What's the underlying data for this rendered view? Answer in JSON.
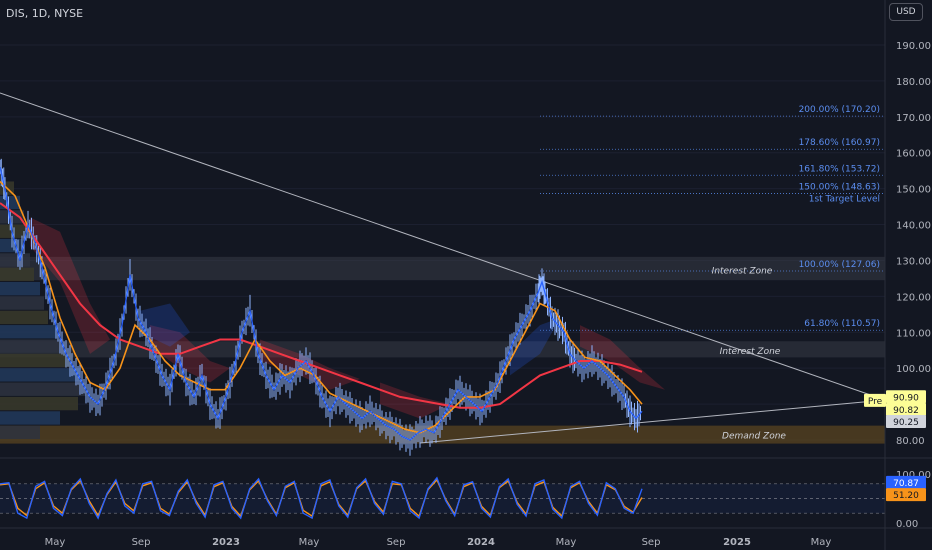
{
  "header": {
    "title": "DIS, 1D, NYSE",
    "currency": "USD"
  },
  "colors": {
    "background": "#131722",
    "price_line": "#2962ff",
    "candle": "#8fb4ff",
    "ema_fast": "#f7931a",
    "sma_slow": "#f23645",
    "fib_text": "#5b8def",
    "zone_gray": "#363a45",
    "demand_zone": "#5a4420",
    "stoch_k": "#2962ff",
    "stoch_d": "#f7931a"
  },
  "chart_data": [
    {
      "type": "line",
      "title": "DIS, 1D, NYSE",
      "ylim": [
        75,
        197
      ],
      "price_axis_ticks": [
        "190.00",
        "180.00",
        "170.00",
        "160.00",
        "150.00",
        "140.00",
        "130.00",
        "120.00",
        "110.00",
        "100.00",
        "90.00",
        "80.00"
      ],
      "time_axis_labels": [
        "May",
        "Sep",
        "2023",
        "May",
        "Sep",
        "2024",
        "May",
        "Sep",
        "2025",
        "May"
      ],
      "series": [
        {
          "name": "",
          "points": [
            [
              0,
              156
            ],
            [
              5,
              150
            ],
            [
              12,
              138
            ],
            [
              20,
              130
            ],
            [
              28,
              140
            ],
            [
              35,
              135
            ],
            [
              42,
              128
            ],
            [
              50,
              118
            ],
            [
              58,
              110
            ],
            [
              66,
              104
            ],
            [
              74,
              100
            ],
            [
              82,
              96
            ],
            [
              90,
              92
            ],
            [
              98,
              90
            ],
            [
              106,
              95
            ],
            [
              114,
              102
            ],
            [
              122,
              112
            ],
            [
              130,
              126
            ],
            [
              138,
              114
            ],
            [
              146,
              110
            ],
            [
              154,
              104
            ],
            [
              162,
              98
            ],
            [
              170,
              94
            ],
            [
              178,
              104
            ],
            [
              186,
              96
            ],
            [
              194,
              92
            ],
            [
              202,
              98
            ],
            [
              210,
              90
            ],
            [
              218,
              86
            ],
            [
              226,
              92
            ],
            [
              234,
              100
            ],
            [
              242,
              110
            ],
            [
              250,
              116
            ],
            [
              258,
              104
            ],
            [
              266,
              98
            ],
            [
              274,
              94
            ],
            [
              282,
              98
            ],
            [
              290,
              96
            ],
            [
              298,
              100
            ],
            [
              306,
              102
            ],
            [
              314,
              98
            ],
            [
              322,
              92
            ],
            [
              330,
              88
            ],
            [
              338,
              92
            ],
            [
              346,
              90
            ],
            [
              354,
              88
            ],
            [
              362,
              86
            ],
            [
              370,
              88
            ],
            [
              378,
              86
            ],
            [
              386,
              84
            ],
            [
              394,
              83
            ],
            [
              402,
              81
            ],
            [
              410,
              80
            ],
            [
              418,
              82
            ],
            [
              426,
              83
            ],
            [
              434,
              82
            ],
            [
              442,
              86
            ],
            [
              450,
              90
            ],
            [
              458,
              94
            ],
            [
              466,
              92
            ],
            [
              474,
              90
            ],
            [
              482,
              88
            ],
            [
              490,
              92
            ],
            [
              498,
              96
            ],
            [
              506,
              102
            ],
            [
              514,
              108
            ],
            [
              522,
              112
            ],
            [
              530,
              116
            ],
            [
              538,
              121
            ],
            [
              542,
              124
            ],
            [
              546,
              120
            ],
            [
              552,
              114
            ],
            [
              558,
              112
            ],
            [
              564,
              110
            ],
            [
              570,
              104
            ],
            [
              576,
              102
            ],
            [
              584,
              100
            ],
            [
              592,
              102
            ],
            [
              600,
              100
            ],
            [
              608,
              98
            ],
            [
              616,
              95
            ],
            [
              624,
              92
            ],
            [
              630,
              88
            ],
            [
              636,
              86
            ],
            [
              642,
              88
            ]
          ]
        },
        {
          "name": "",
          "points": [
            [
              0,
              152
            ],
            [
              15,
              148
            ],
            [
              30,
              138
            ],
            [
              45,
              128
            ],
            [
              60,
              114
            ],
            [
              75,
              104
            ],
            [
              90,
              96
            ],
            [
              105,
              94
            ],
            [
              120,
              100
            ],
            [
              135,
              112
            ],
            [
              150,
              108
            ],
            [
              165,
              102
            ],
            [
              180,
              98
            ],
            [
              195,
              96
            ],
            [
              210,
              94
            ],
            [
              225,
              94
            ],
            [
              240,
              100
            ],
            [
              255,
              108
            ],
            [
              270,
              102
            ],
            [
              285,
              98
            ],
            [
              300,
              100
            ],
            [
              315,
              98
            ],
            [
              330,
              93
            ],
            [
              345,
              91
            ],
            [
              360,
              89
            ],
            [
              375,
              87
            ],
            [
              390,
              85
            ],
            [
              405,
              83
            ],
            [
              420,
              82
            ],
            [
              435,
              84
            ],
            [
              450,
              88
            ],
            [
              465,
              92
            ],
            [
              480,
              92
            ],
            [
              495,
              94
            ],
            [
              510,
              102
            ],
            [
              525,
              110
            ],
            [
              540,
              118
            ],
            [
              555,
              116
            ],
            [
              570,
              108
            ],
            [
              585,
              103
            ],
            [
              600,
              102
            ],
            [
              615,
              98
            ],
            [
              630,
              94
            ],
            [
              642,
              90
            ]
          ]
        },
        {
          "name": "",
          "points": [
            [
              0,
              146
            ],
            [
              20,
              142
            ],
            [
              40,
              134
            ],
            [
              60,
              126
            ],
            [
              80,
              118
            ],
            [
              100,
              112
            ],
            [
              120,
              108
            ],
            [
              140,
              106
            ],
            [
              160,
              104
            ],
            [
              180,
              104
            ],
            [
              200,
              106
            ],
            [
              220,
              108
            ],
            [
              240,
              108
            ],
            [
              260,
              106
            ],
            [
              280,
              104
            ],
            [
              300,
              102
            ],
            [
              320,
              100
            ],
            [
              340,
              98
            ],
            [
              360,
              96
            ],
            [
              380,
              94
            ],
            [
              400,
              92
            ],
            [
              420,
              91
            ],
            [
              440,
              90
            ],
            [
              460,
              89
            ],
            [
              480,
              89
            ],
            [
              500,
              90
            ],
            [
              520,
              94
            ],
            [
              540,
              98
            ],
            [
              560,
              100
            ],
            [
              580,
              102
            ],
            [
              600,
              102
            ],
            [
              620,
              101
            ],
            [
              642,
              99
            ]
          ]
        }
      ],
      "fib_levels": [
        {
          "label": "200.00% (170.20)",
          "price": 170.2
        },
        {
          "label": "178.60% (160.97)",
          "price": 160.97
        },
        {
          "label": "161.80% (153.72)",
          "price": 153.72
        },
        {
          "label": "150.00% (148.63)",
          "price": 148.63
        },
        {
          "label": "100.00% (127.06)",
          "price": 127.06
        },
        {
          "label": "61.80% (110.57)",
          "price": 110.57
        }
      ],
      "annotations": [
        "1st Target Level",
        "Interest Zone",
        "Interest Zone",
        "Demand Zone"
      ],
      "price_tags": [
        "Pre",
        "90.90",
        "90.82",
        "90.25"
      ]
    },
    {
      "type": "line",
      "ylim": [
        -5,
        105
      ],
      "oscillator_ticks": [
        "100.00",
        "0.00"
      ],
      "value_tags": [
        "70.87",
        "51.20"
      ],
      "series": [
        {
          "name": "",
          "values": [
            80,
            82,
            20,
            10,
            75,
            85,
            30,
            15,
            70,
            90,
            40,
            10,
            60,
            88,
            35,
            20,
            80,
            85,
            25,
            15,
            65,
            88,
            40,
            12,
            78,
            85,
            30,
            10,
            70,
            90,
            45,
            15,
            75,
            85,
            20,
            10,
            80,
            88,
            35,
            12,
            72,
            90,
            40,
            18,
            85,
            80,
            25,
            10,
            70,
            92,
            45,
            15,
            78,
            84,
            30,
            12,
            74,
            90,
            38,
            14,
            80,
            88,
            28,
            10,
            75,
            85,
            40,
            16,
            82,
            70,
            30,
            20,
            70
          ]
        },
        {
          "name": "",
          "values": [
            78,
            80,
            30,
            15,
            70,
            82,
            35,
            20,
            68,
            86,
            45,
            15,
            58,
            84,
            40,
            25,
            76,
            82,
            30,
            18,
            62,
            84,
            44,
            16,
            74,
            82,
            34,
            14,
            68,
            86,
            48,
            18,
            72,
            82,
            26,
            14,
            76,
            84,
            38,
            16,
            70,
            86,
            44,
            22,
            80,
            78,
            30,
            14,
            68,
            88,
            48,
            18,
            74,
            82,
            34,
            16,
            72,
            86,
            42,
            18,
            76,
            84,
            32,
            14,
            72,
            82,
            44,
            20,
            78,
            68,
            34,
            22,
            52
          ]
        }
      ]
    }
  ]
}
